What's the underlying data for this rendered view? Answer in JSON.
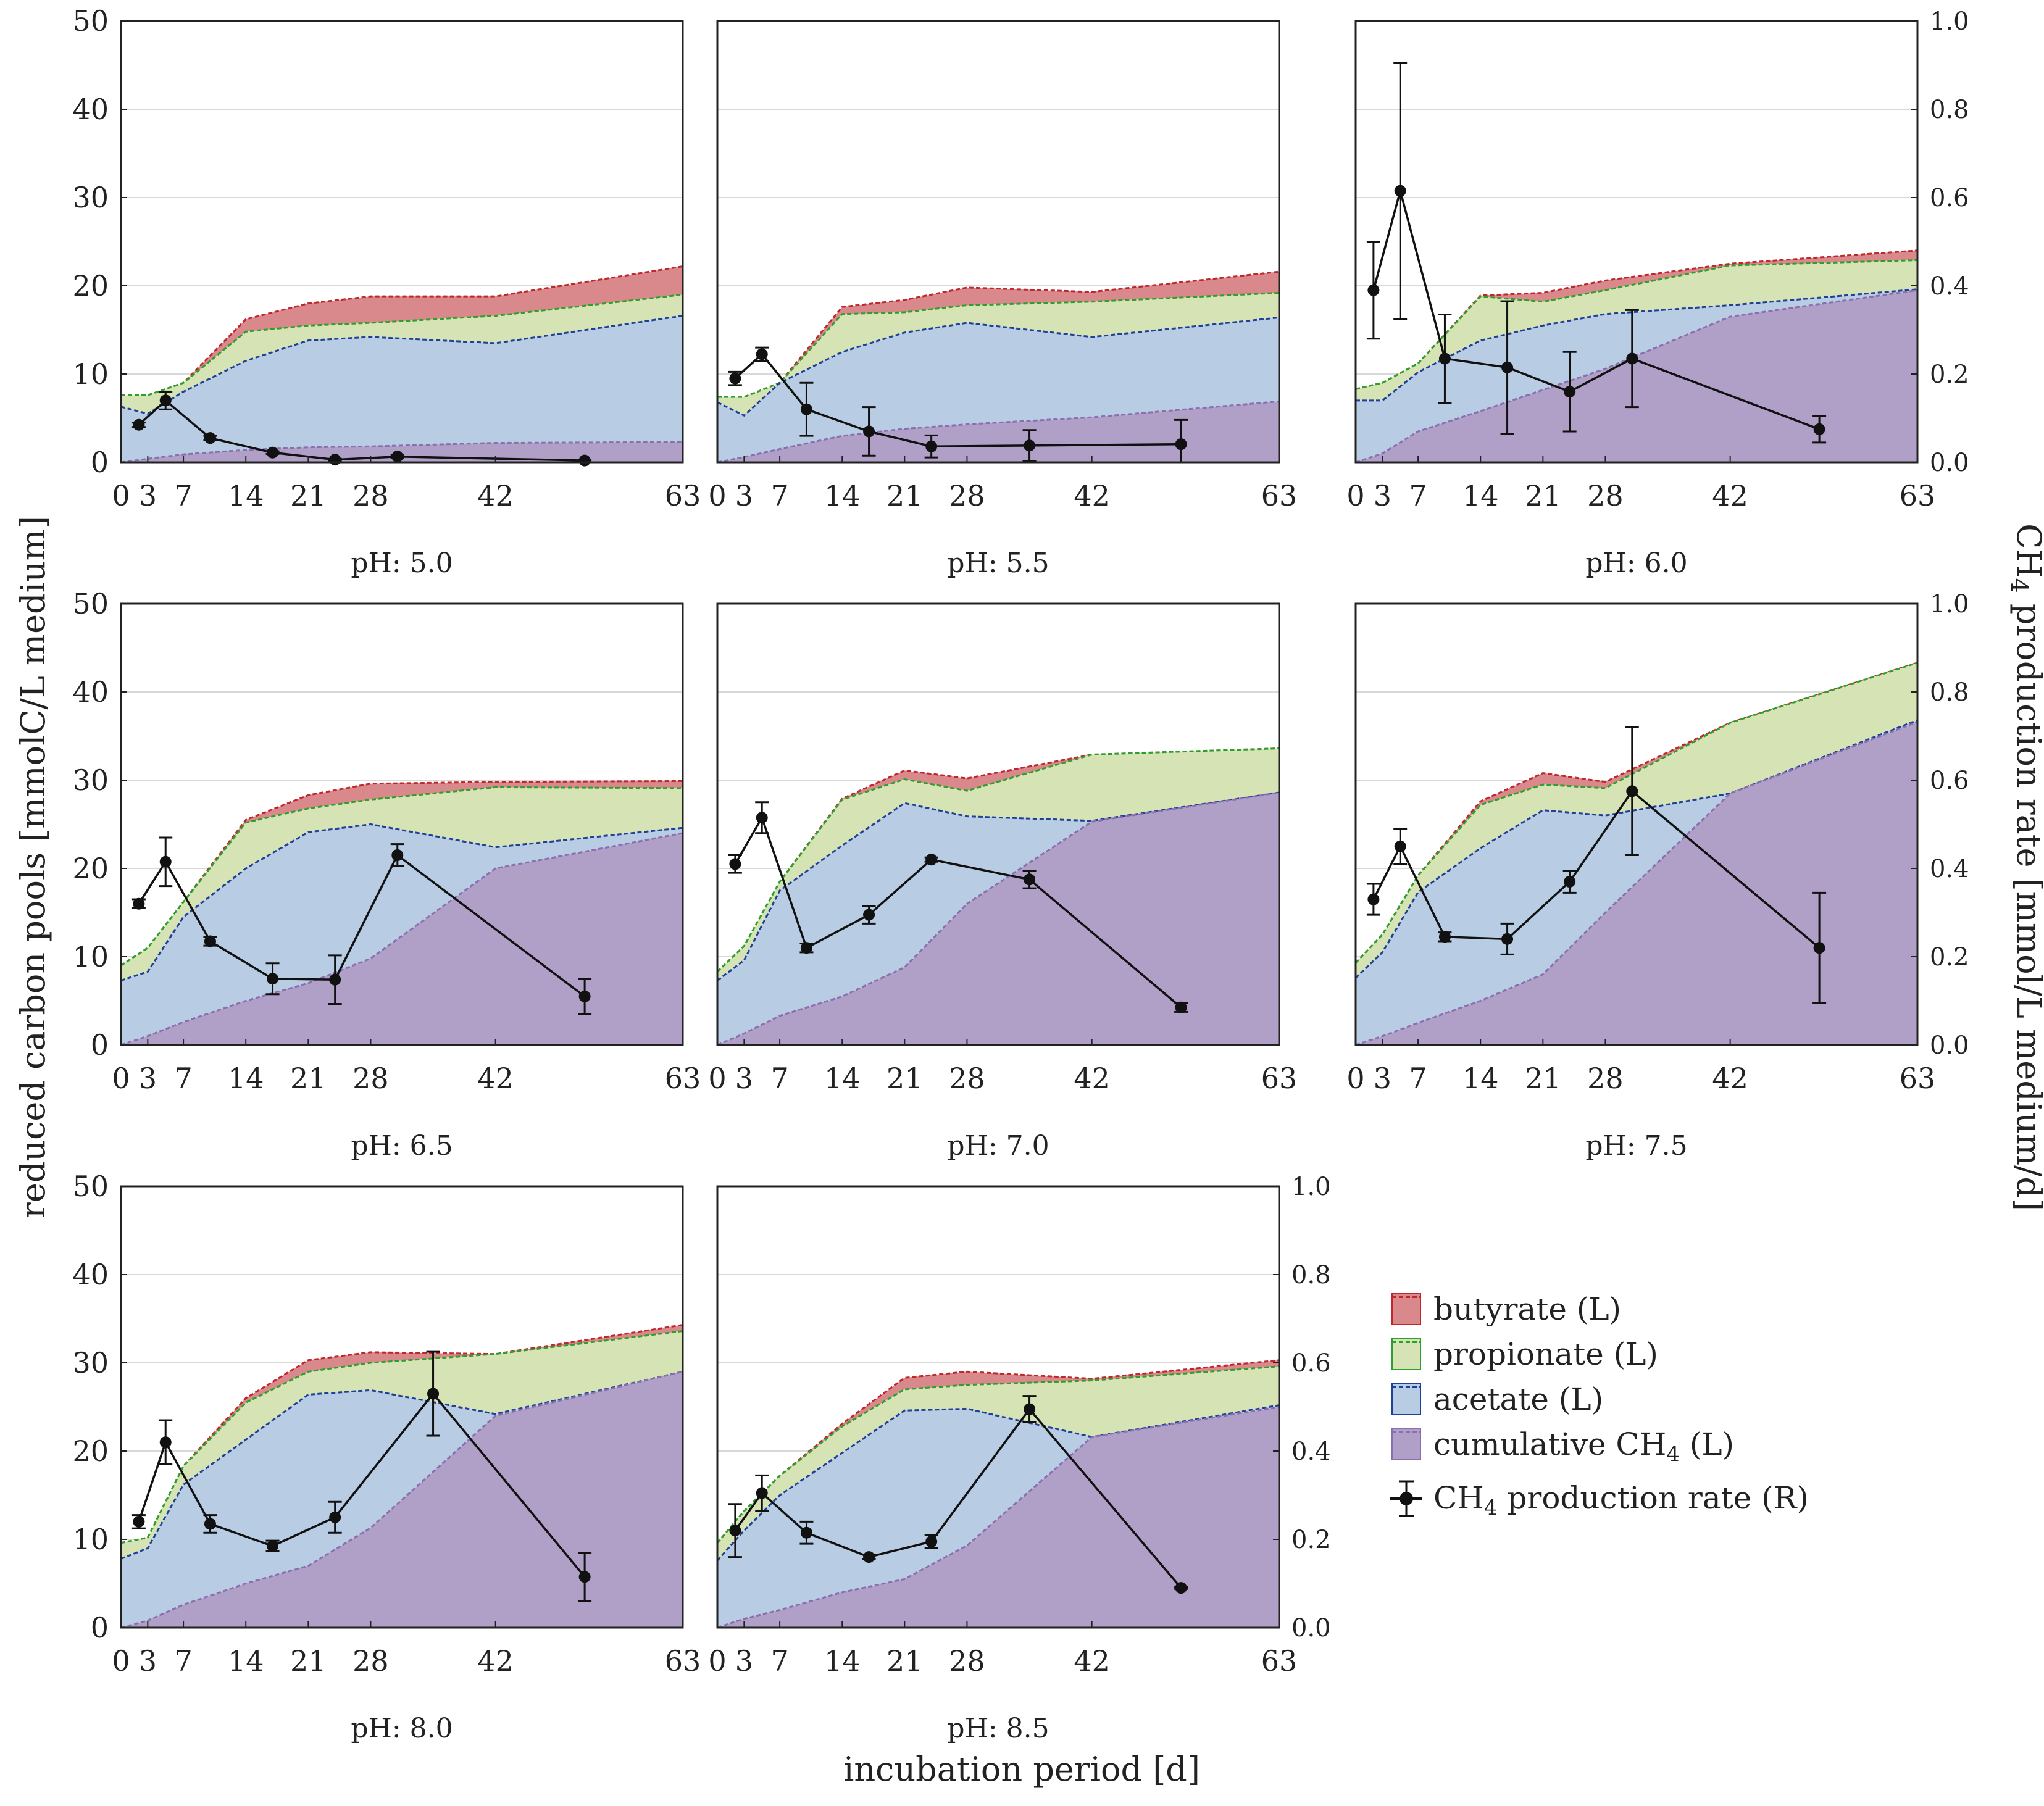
{
  "figure": {
    "y_left_label": "reduced carbon pools [mmolC/L medium]",
    "y_right_label_prefix": "CH",
    "y_right_label_sub": "4",
    "y_right_label_suffix": " production rate [mmol/L medium/d]",
    "x_label": "incubation period [d]"
  },
  "legend": {
    "items": [
      {
        "label": "butyrate (L)",
        "fill": "#d9898c",
        "stroke": "#c0272d",
        "kind": "area"
      },
      {
        "label": "propionate (L)",
        "fill": "#d6e3b5",
        "stroke": "#2ca02c",
        "kind": "area"
      },
      {
        "label": "acetate (L)",
        "fill": "#b8cce4",
        "stroke": "#1f3f99",
        "kind": "area"
      },
      {
        "label_prefix": "cumulative CH",
        "label_sub": "4",
        "label_suffix": " (L)",
        "fill": "#b09fc7",
        "stroke": "#8a6fb0",
        "kind": "area"
      },
      {
        "label_prefix": "CH",
        "label_sub": "4",
        "label_suffix": " production rate (R)",
        "kind": "line"
      }
    ]
  },
  "colors": {
    "butyrate": "#d9898c",
    "butyrate_line": "#c0272d",
    "propionate": "#d6e3b5",
    "propionate_line": "#2ca02c",
    "acetate": "#b8cce4",
    "acetate_line": "#1f3f99",
    "ch4": "#b09fc7",
    "ch4_line": "#8a6fb0",
    "rate": "#111111"
  },
  "chart_data": [
    {
      "type": "area",
      "title": "pH: 5.0",
      "xticks": [
        0,
        3,
        7,
        14,
        21,
        28,
        42,
        63
      ],
      "xlim": [
        0,
        63
      ],
      "ylim_left": [
        0,
        50
      ],
      "ylim_right": [
        0,
        1.0
      ],
      "x": [
        0,
        3,
        7,
        14,
        21,
        28,
        42,
        63
      ],
      "ch4": [
        0,
        0.4,
        0.9,
        1.4,
        1.7,
        1.8,
        2.2,
        2.3
      ],
      "acetate_top": [
        6.3,
        5.5,
        8,
        11.5,
        13.8,
        14.2,
        13.5,
        16.6
      ],
      "propionate_top": [
        7.6,
        7.6,
        9,
        14.8,
        15.5,
        15.8,
        16.6,
        19
      ],
      "butyrate_top": [
        7.6,
        7.6,
        9,
        16.2,
        18,
        18.8,
        18.8,
        22.2
      ],
      "rate": {
        "x": [
          2,
          5,
          10,
          17,
          24,
          31,
          52
        ],
        "y": [
          0.085,
          0.14,
          0.055,
          0.022,
          0.006,
          0.013,
          0.004
        ],
        "err": [
          0.005,
          0.02,
          0.005,
          0.003,
          0.002,
          0.003,
          0.002
        ]
      }
    },
    {
      "type": "area",
      "title": "pH: 5.5",
      "xticks": [
        0,
        3,
        7,
        14,
        21,
        28,
        42,
        63
      ],
      "xlim": [
        0,
        63
      ],
      "ylim_left": [
        0,
        50
      ],
      "ylim_right": [
        0,
        1.0
      ],
      "x": [
        0,
        3,
        7,
        14,
        21,
        28,
        42,
        63
      ],
      "ch4": [
        0,
        0.6,
        1.5,
        3,
        3.8,
        4.3,
        5.1,
        6.9
      ],
      "acetate_top": [
        6.8,
        5.3,
        9,
        12.5,
        14.7,
        15.8,
        14.2,
        16.4
      ],
      "propionate_top": [
        7.4,
        7.4,
        9,
        16.8,
        17,
        17.8,
        18.2,
        19.2
      ],
      "butyrate_top": [
        7.4,
        7.4,
        9,
        17.6,
        18.4,
        19.8,
        19.3,
        21.6
      ],
      "rate": {
        "x": [
          2,
          5,
          10,
          17,
          24,
          35,
          52
        ],
        "y": [
          0.19,
          0.245,
          0.12,
          0.07,
          0.036,
          0.038,
          0.041
        ],
        "err": [
          0.015,
          0.015,
          0.06,
          0.055,
          0.025,
          0.035,
          0.055
        ]
      }
    },
    {
      "type": "area",
      "title": "pH: 6.0",
      "xticks": [
        0,
        3,
        7,
        14,
        21,
        28,
        42,
        63
      ],
      "xlim": [
        0,
        63
      ],
      "ylim_left": [
        0,
        50
      ],
      "ylim_right": [
        0,
        1.0
      ],
      "x": [
        0,
        3,
        7,
        14,
        21,
        28,
        42,
        63
      ],
      "ch4": [
        0,
        1,
        3.5,
        5.8,
        8.2,
        10.6,
        16.5,
        19.5
      ],
      "acetate_top": [
        7,
        7,
        10.2,
        13.8,
        15.5,
        16.8,
        17.8,
        19.6
      ],
      "propionate_top": [
        8.3,
        9,
        11.2,
        18.8,
        18.2,
        19.5,
        22.3,
        22.9
      ],
      "butyrate_top": [
        8.3,
        9,
        11.2,
        18.9,
        19.2,
        20.6,
        22.5,
        24
      ],
      "rate": {
        "x": [
          2,
          5,
          10,
          17,
          24,
          31,
          52
        ],
        "y": [
          0.39,
          0.615,
          0.235,
          0.215,
          0.16,
          0.235,
          0.075
        ],
        "err": [
          0.11,
          0.29,
          0.1,
          0.15,
          0.09,
          0.11,
          0.03
        ]
      }
    },
    {
      "type": "area",
      "title": "pH: 6.5",
      "xticks": [
        0,
        3,
        7,
        14,
        21,
        28,
        42,
        63
      ],
      "xlim": [
        0,
        63
      ],
      "ylim_left": [
        0,
        50
      ],
      "ylim_right": [
        0,
        1.0
      ],
      "x": [
        0,
        3,
        7,
        14,
        21,
        28,
        42,
        63
      ],
      "ch4": [
        0,
        1,
        2.6,
        5,
        7,
        9.8,
        20,
        24
      ],
      "acetate_top": [
        7.3,
        8.3,
        14.5,
        20,
        24.1,
        25,
        22.4,
        24.6
      ],
      "propionate_top": [
        9,
        11,
        16.2,
        25.2,
        26.8,
        27.8,
        29.2,
        29.1
      ],
      "butyrate_top": [
        9,
        11,
        16.2,
        25.5,
        28.3,
        29.6,
        29.8,
        29.9
      ],
      "rate": {
        "x": [
          2,
          5,
          10,
          17,
          24,
          31,
          52
        ],
        "y": [
          0.32,
          0.415,
          0.235,
          0.15,
          0.148,
          0.43,
          0.11
        ],
        "err": [
          0.01,
          0.055,
          0.01,
          0.035,
          0.055,
          0.025,
          0.04
        ]
      }
    },
    {
      "type": "area",
      "title": "pH: 7.0",
      "xticks": [
        0,
        3,
        7,
        14,
        21,
        28,
        42,
        63
      ],
      "xlim": [
        0,
        63
      ],
      "ylim_left": [
        0,
        50
      ],
      "ylim_right": [
        0,
        1.0
      ],
      "x": [
        0,
        3,
        7,
        14,
        21,
        28,
        42,
        63
      ],
      "ch4": [
        0,
        1.3,
        3.3,
        5.5,
        8.8,
        16,
        25.3,
        28.6
      ],
      "acetate_top": [
        7.3,
        9.6,
        17.5,
        22.6,
        27.4,
        25.9,
        25.4,
        28.6
      ],
      "propionate_top": [
        8.3,
        11.2,
        18.5,
        27.8,
        30.1,
        28.8,
        32.9,
        33.6
      ],
      "butyrate_top": [
        8.3,
        11.2,
        18.5,
        27.9,
        31.1,
        30.2,
        32.9,
        33.6
      ],
      "rate": {
        "x": [
          2,
          5,
          10,
          17,
          24,
          35,
          52
        ],
        "y": [
          0.41,
          0.515,
          0.22,
          0.295,
          0.42,
          0.375,
          0.085
        ],
        "err": [
          0.02,
          0.035,
          0.01,
          0.02,
          0.005,
          0.02,
          0.01
        ]
      }
    },
    {
      "type": "area",
      "title": "pH: 7.5",
      "xticks": [
        0,
        3,
        7,
        14,
        21,
        28,
        42,
        63
      ],
      "xlim": [
        0,
        63
      ],
      "ylim_left": [
        0,
        50
      ],
      "ylim_right": [
        0,
        1.0
      ],
      "x": [
        0,
        3,
        7,
        14,
        21,
        28,
        42,
        63
      ],
      "ch4": [
        0,
        1,
        2.5,
        5,
        8,
        15,
        28.5,
        36.6
      ],
      "acetate_top": [
        7.6,
        10.5,
        17.3,
        22.3,
        26.6,
        26,
        28.5,
        36.8
      ],
      "propionate_top": [
        9.3,
        12.5,
        19.2,
        27.2,
        29.5,
        29.1,
        36.5,
        43.3
      ],
      "butyrate_top": [
        9.3,
        12.5,
        19.2,
        27.6,
        30.8,
        29.8,
        36.5,
        43.3
      ],
      "rate": {
        "x": [
          2,
          5,
          10,
          17,
          24,
          31,
          52
        ],
        "y": [
          0.33,
          0.45,
          0.245,
          0.24,
          0.37,
          0.575,
          0.22
        ],
        "err": [
          0.035,
          0.04,
          0.01,
          0.035,
          0.025,
          0.145,
          0.125
        ]
      }
    },
    {
      "type": "area",
      "title": "pH: 8.0",
      "xticks": [
        0,
        3,
        7,
        14,
        21,
        28,
        42,
        63
      ],
      "xlim": [
        0,
        63
      ],
      "ylim_left": [
        0,
        50
      ],
      "ylim_right": [
        0,
        1.0
      ],
      "x": [
        0,
        3,
        7,
        14,
        21,
        28,
        42,
        63
      ],
      "ch4": [
        0,
        0.8,
        2.6,
        5,
        7,
        11.3,
        24,
        29
      ],
      "acetate_top": [
        7.8,
        9,
        16.2,
        21.3,
        26.4,
        26.9,
        24.2,
        29
      ],
      "propionate_top": [
        9.6,
        10.2,
        18.3,
        25.5,
        29,
        30,
        31,
        33.6
      ],
      "butyrate_top": [
        9.6,
        10.2,
        18.3,
        26,
        30.3,
        31.2,
        31,
        34.3
      ],
      "rate": {
        "x": [
          2,
          5,
          10,
          17,
          24,
          35,
          52
        ],
        "y": [
          0.24,
          0.42,
          0.235,
          0.185,
          0.25,
          0.53,
          0.115
        ],
        "err": [
          0.015,
          0.05,
          0.02,
          0.012,
          0.035,
          0.095,
          0.055
        ]
      }
    },
    {
      "type": "area",
      "title": "pH: 8.5",
      "xticks": [
        0,
        3,
        7,
        14,
        21,
        28,
        42,
        63
      ],
      "xlim": [
        0,
        63
      ],
      "ylim_left": [
        0,
        50
      ],
      "ylim_right": [
        0,
        1.0
      ],
      "x": [
        0,
        3,
        7,
        14,
        21,
        28,
        42,
        63
      ],
      "ch4": [
        0,
        1,
        2,
        4,
        5.5,
        9.3,
        21.6,
        25
      ],
      "acetate_top": [
        7.6,
        11,
        15,
        19.8,
        24.6,
        24.8,
        21.6,
        25.2
      ],
      "propionate_top": [
        9.6,
        13.2,
        17.2,
        22.8,
        27,
        27.5,
        28,
        29.6
      ],
      "butyrate_top": [
        9.6,
        13.2,
        17.2,
        23.1,
        28.3,
        29,
        28.2,
        30.3
      ],
      "rate": {
        "x": [
          2,
          5,
          10,
          17,
          24,
          35,
          52
        ],
        "y": [
          0.22,
          0.305,
          0.215,
          0.16,
          0.195,
          0.495,
          0.09
        ],
        "err": [
          0.06,
          0.04,
          0.025,
          0.005,
          0.015,
          0.03,
          0.002
        ]
      }
    }
  ]
}
